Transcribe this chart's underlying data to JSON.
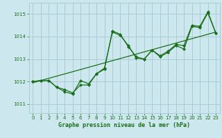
{
  "title": "Graphe pression niveau de la mer (hPa)",
  "bg_color": "#cce8ee",
  "grid_color": "#aaccd4",
  "line_color": "#1a6e1a",
  "xlim": [
    -0.5,
    23.5
  ],
  "ylim": [
    1010.6,
    1015.5
  ],
  "yticks": [
    1011,
    1012,
    1013,
    1014,
    1015
  ],
  "xticks": [
    0,
    1,
    2,
    3,
    4,
    5,
    6,
    7,
    8,
    9,
    10,
    11,
    12,
    13,
    14,
    15,
    16,
    17,
    18,
    19,
    20,
    21,
    22,
    23
  ],
  "series1_x": [
    0,
    1,
    2,
    3,
    4,
    5,
    6,
    7,
    8,
    9,
    10,
    11,
    12,
    13,
    14,
    15,
    16,
    17,
    18,
    19,
    20,
    21,
    22,
    23
  ],
  "series1_y": [
    1012.0,
    1012.05,
    1012.05,
    1011.75,
    1011.65,
    1011.5,
    1011.85,
    1011.85,
    1012.35,
    1012.55,
    1014.25,
    1014.1,
    1013.55,
    1013.1,
    1013.0,
    1013.4,
    1013.15,
    1013.35,
    1013.65,
    1013.6,
    1014.5,
    1014.45,
    1015.1,
    1014.15
  ],
  "series2_x": [
    0,
    1,
    2,
    3,
    4,
    5,
    6,
    7,
    8,
    9,
    10,
    11,
    12,
    13,
    14,
    15,
    16,
    17,
    18,
    19,
    20,
    21,
    22,
    23
  ],
  "series2_y": [
    1012.0,
    1012.05,
    1012.05,
    1011.75,
    1011.55,
    1011.45,
    1012.05,
    1011.9,
    1012.35,
    1012.6,
    1014.2,
    1014.05,
    1013.6,
    1013.05,
    1013.0,
    1013.4,
    1013.1,
    1013.3,
    1013.6,
    1013.45,
    1014.45,
    1014.4,
    1015.05,
    1014.15
  ],
  "trend_x": [
    0,
    23
  ],
  "trend_y": [
    1011.95,
    1014.2
  ]
}
